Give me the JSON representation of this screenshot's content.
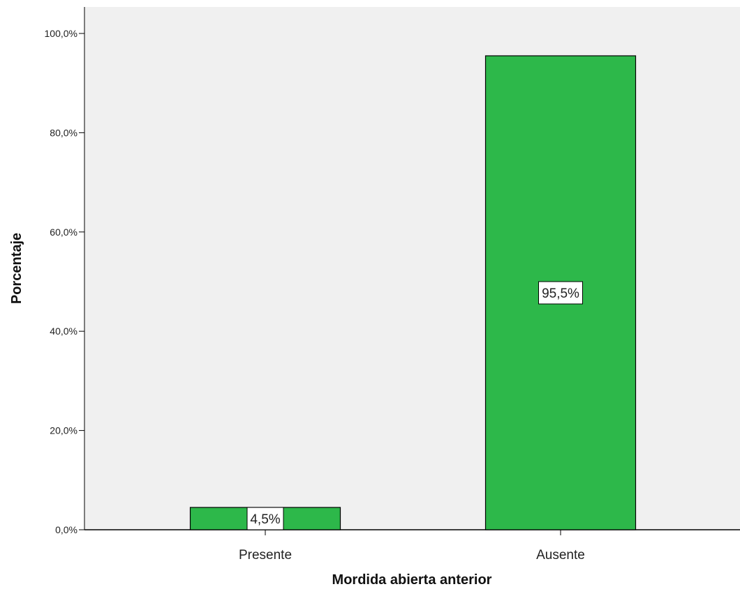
{
  "chart_data": {
    "type": "bar",
    "categories": [
      "Presente",
      "Ausente"
    ],
    "values": [
      4.5,
      95.5
    ],
    "data_labels": [
      "4,5%",
      "95,5%"
    ],
    "xlabel": "Mordida abierta anterior",
    "ylabel": "Porcentaje",
    "ylim": [
      0,
      100
    ],
    "yticks": [
      0,
      20,
      40,
      60,
      80,
      100
    ],
    "ytick_labels": [
      "0,0%",
      "20,0%",
      "40,0%",
      "60,0%",
      "80,0%",
      "100,0%"
    ],
    "grid": false,
    "bar_color": "#2db84a",
    "plot_background": "#f0f0f0"
  }
}
